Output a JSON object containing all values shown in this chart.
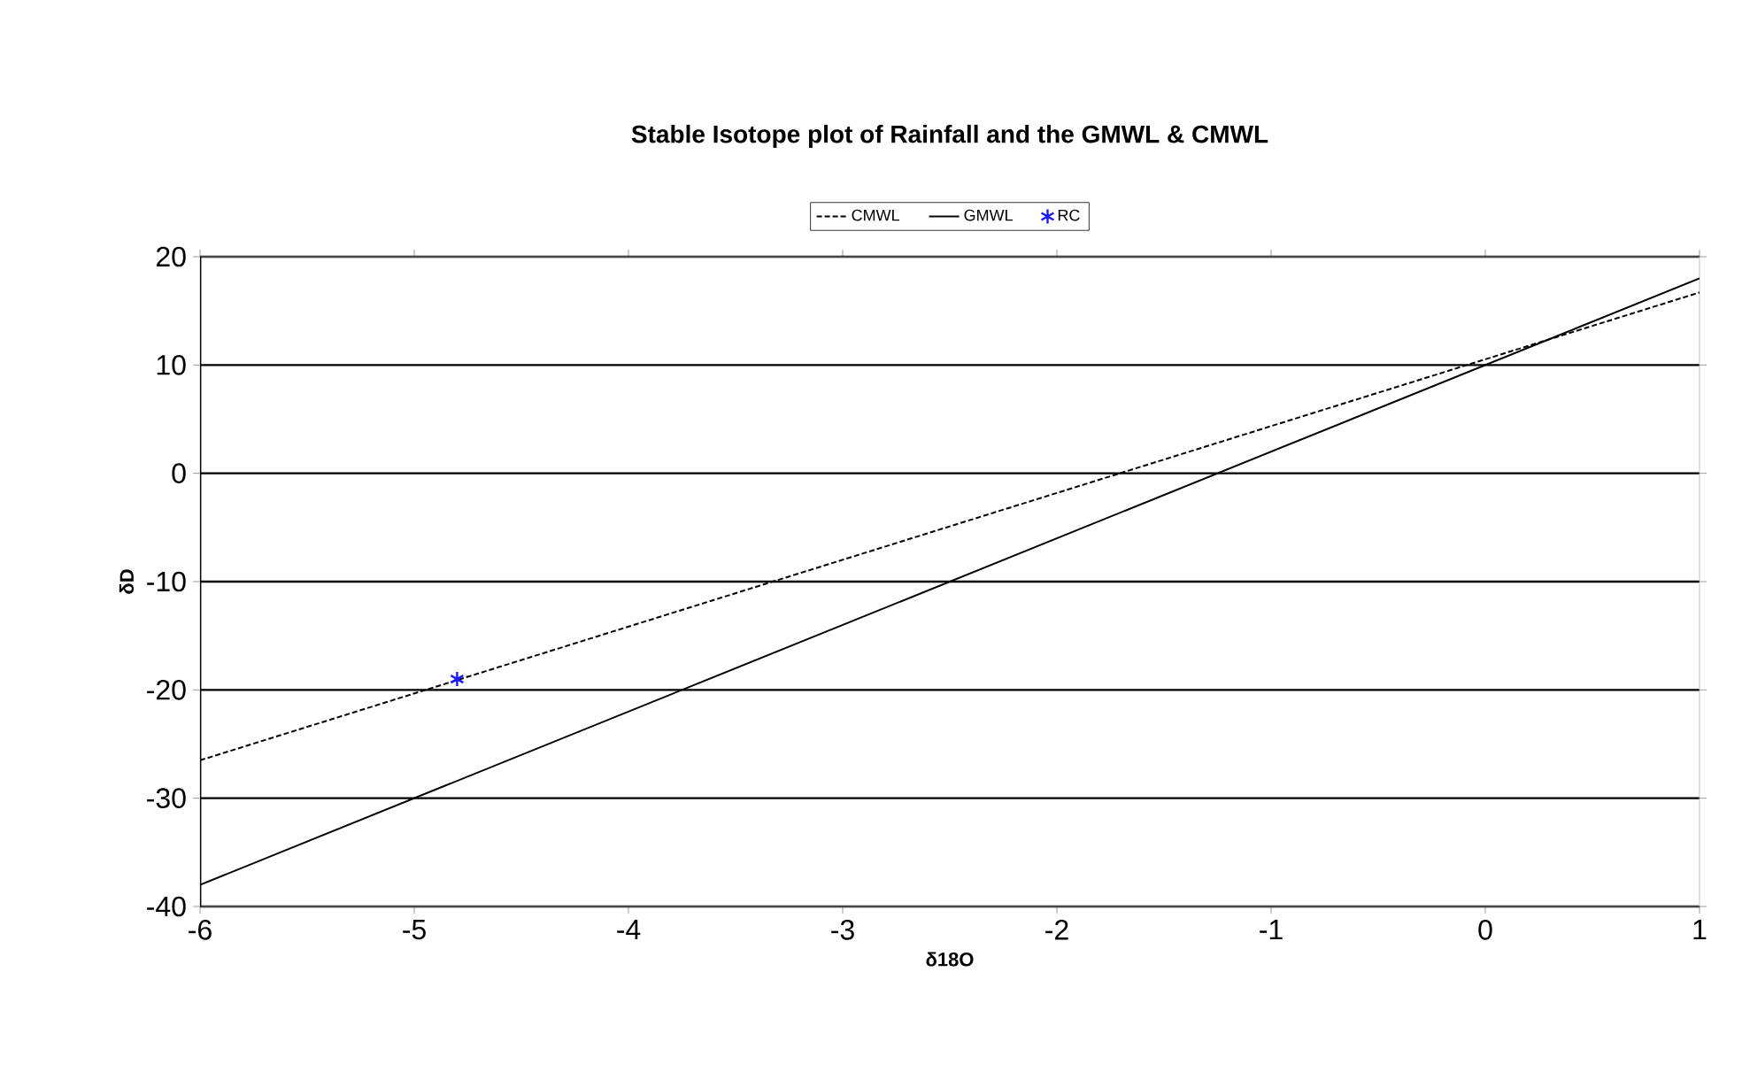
{
  "chart_data": {
    "type": "line",
    "title": "Stable Isotope plot of Rainfall and the GMWL & CMWL",
    "xlabel": "δ18O",
    "ylabel": "δD",
    "xlim": [
      -6,
      1
    ],
    "xticks": [
      -6,
      -5,
      -4,
      -3,
      -2,
      -1,
      0,
      1
    ],
    "ylim": [
      -40,
      20
    ],
    "yticks": [
      -40,
      -30,
      -20,
      -10,
      0,
      10,
      20
    ],
    "grid": "y",
    "legend": "top",
    "series": [
      {
        "name": "CMWL",
        "color": "#000000",
        "line_style": "dashed",
        "x": [
          -6,
          1
        ],
        "values": [
          -26.5,
          16.7
        ]
      },
      {
        "name": "GMWL",
        "color": "#000000",
        "line_style": "solid",
        "x": [
          -6,
          1
        ],
        "values": [
          -38,
          18
        ]
      },
      {
        "name": "RC",
        "type": "scatter",
        "marker": "cross",
        "color": "#1a1aff",
        "x": [
          -4.8
        ],
        "values": [
          -19
        ]
      }
    ]
  }
}
